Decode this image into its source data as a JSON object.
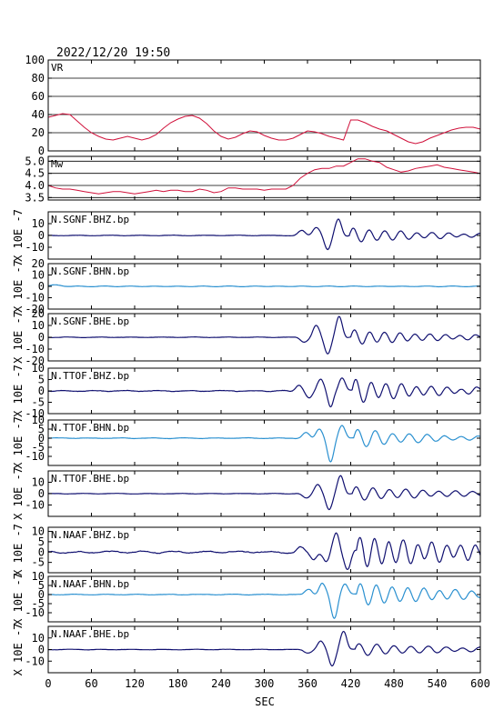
{
  "chart_data": {
    "type": "line",
    "title": "2022/12/20 19:50",
    "xlabel": "SEC",
    "xlim": [
      0,
      600
    ],
    "xticks": [
      "0",
      "60",
      "120",
      "180",
      "240",
      "300",
      "360",
      "420",
      "480",
      "540",
      "600"
    ],
    "colors": {
      "vr": "#d0103a",
      "mw": "#d0103a",
      "dark": "#101070",
      "light": "#2a90d0",
      "axes": "#000000"
    },
    "panels": [
      {
        "id": "vr",
        "label": "VR",
        "kind": "line",
        "color_key": "vr",
        "ylim": [
          0,
          100
        ],
        "yticks": [
          "0",
          "20",
          "40",
          "60",
          "80",
          "100"
        ],
        "grid": true,
        "ylabel": "",
        "x": [
          0,
          10,
          20,
          30,
          40,
          50,
          60,
          70,
          80,
          90,
          100,
          110,
          120,
          130,
          140,
          150,
          160,
          170,
          180,
          190,
          200,
          210,
          220,
          230,
          240,
          250,
          260,
          270,
          280,
          290,
          300,
          310,
          320,
          330,
          340,
          350,
          360,
          370,
          380,
          390,
          400,
          410,
          420,
          430,
          440,
          450,
          460,
          470,
          480,
          490,
          500,
          510,
          520,
          530,
          540,
          550,
          560,
          570,
          580,
          590,
          600
        ],
        "y": [
          37,
          39,
          41,
          40,
          33,
          26,
          20,
          16,
          13,
          12,
          14,
          16,
          14,
          12,
          14,
          18,
          25,
          31,
          35,
          38,
          39,
          36,
          30,
          22,
          16,
          13,
          15,
          19,
          22,
          21,
          17,
          14,
          12,
          12,
          14,
          18,
          22,
          21,
          19,
          16,
          14,
          12,
          34,
          34,
          31,
          27,
          24,
          22,
          18,
          14,
          10,
          8,
          10,
          14,
          17,
          20,
          23,
          25,
          26,
          26,
          24
        ]
      },
      {
        "id": "mw",
        "label": "Mw",
        "kind": "line",
        "color_key": "mw",
        "ylim": [
          3.4,
          5.2
        ],
        "yticks": [
          "3.5",
          "4.0",
          "4.5",
          "5.0"
        ],
        "grid": true,
        "ylabel": "",
        "x": [
          0,
          10,
          20,
          30,
          40,
          50,
          60,
          70,
          80,
          90,
          100,
          110,
          120,
          130,
          140,
          150,
          160,
          170,
          180,
          190,
          200,
          210,
          220,
          230,
          240,
          250,
          260,
          270,
          280,
          290,
          300,
          310,
          320,
          330,
          340,
          350,
          360,
          370,
          380,
          390,
          400,
          410,
          420,
          430,
          440,
          450,
          460,
          470,
          480,
          490,
          500,
          510,
          520,
          530,
          540,
          550,
          560,
          570,
          580,
          590,
          600
        ],
        "y": [
          4.0,
          3.9,
          3.85,
          3.85,
          3.8,
          3.75,
          3.7,
          3.65,
          3.7,
          3.75,
          3.75,
          3.7,
          3.65,
          3.7,
          3.75,
          3.8,
          3.75,
          3.8,
          3.8,
          3.75,
          3.75,
          3.85,
          3.8,
          3.7,
          3.75,
          3.9,
          3.9,
          3.85,
          3.85,
          3.85,
          3.8,
          3.85,
          3.85,
          3.85,
          4.0,
          4.3,
          4.5,
          4.65,
          4.7,
          4.7,
          4.8,
          4.8,
          4.95,
          5.1,
          5.1,
          5.0,
          4.95,
          4.75,
          4.65,
          4.55,
          4.6,
          4.7,
          4.75,
          4.8,
          4.85,
          4.75,
          4.7,
          4.65,
          4.6,
          4.55,
          4.5
        ]
      },
      {
        "id": "sgnf-bhz",
        "label": "N.SGNF.BHZ.bp",
        "kind": "wave",
        "color_key": "dark",
        "ylim": [
          -20,
          20
        ],
        "yticks": [
          "-10",
          "0",
          "10"
        ],
        "ylabel": "X 10E -7",
        "noise": 0.3,
        "onset": 320,
        "ramp": 90,
        "pulses": [
          {
            "t": 352,
            "a": 4,
            "w": 9
          },
          {
            "t": 372,
            "a": 7,
            "w": 9
          },
          {
            "t": 388,
            "a": -12,
            "w": 8
          },
          {
            "t": 403,
            "a": 14,
            "w": 8
          }
        ],
        "tail": {
          "start": 418,
          "a0": 6,
          "decay": 120,
          "period": 22
        }
      },
      {
        "id": "sgnf-bhn",
        "label": "N.SGNF.BHN.bp",
        "kind": "wave",
        "color_key": "light",
        "ylim": [
          -20,
          20
        ],
        "yticks": [
          "-20",
          "-10",
          "0",
          "10",
          "20"
        ],
        "ylabel": "X 10E -7",
        "noise": 0.15,
        "onset": 0,
        "ramp": 1,
        "pulses": [
          {
            "t": 10,
            "a": 1.2,
            "w": 15
          }
        ],
        "tail": {
          "start": 600,
          "a0": 0,
          "decay": 1,
          "period": 20
        }
      },
      {
        "id": "sgnf-bhe",
        "label": "N.SGNF.BHE.bp",
        "kind": "wave",
        "color_key": "dark",
        "ylim": [
          -20,
          20
        ],
        "yticks": [
          "-20",
          "-10",
          "0",
          "10",
          "20"
        ],
        "ylabel": "X 10E -7",
        "noise": 0.3,
        "onset": 325,
        "ramp": 90,
        "pulses": [
          {
            "t": 355,
            "a": -4,
            "w": 9
          },
          {
            "t": 372,
            "a": 10,
            "w": 8
          },
          {
            "t": 388,
            "a": -14,
            "w": 8
          },
          {
            "t": 404,
            "a": 18,
            "w": 8
          }
        ],
        "tail": {
          "start": 420,
          "a0": 6,
          "decay": 130,
          "period": 21
        }
      },
      {
        "id": "ttof-bhz",
        "label": "N.TTOF.BHZ.bp",
        "kind": "wave",
        "color_key": "dark",
        "ylim": [
          -10,
          10
        ],
        "yticks": [
          "-10",
          "-5",
          "0",
          "5",
          "10"
        ],
        "ylabel": "X 10E -7",
        "noise": 0.3,
        "onset": 325,
        "ramp": 90,
        "pulses": [
          {
            "t": 348,
            "a": 2.5,
            "w": 8
          },
          {
            "t": 362,
            "a": -3,
            "w": 8
          },
          {
            "t": 378,
            "a": 5,
            "w": 8
          },
          {
            "t": 392,
            "a": -7,
            "w": 7
          },
          {
            "t": 408,
            "a": 6,
            "w": 8
          }
        ],
        "tail": {
          "start": 422,
          "a0": 5,
          "decay": 110,
          "period": 21
        }
      },
      {
        "id": "ttof-bhn",
        "label": "N.TTOF.BHN.bp",
        "kind": "wave",
        "color_key": "light",
        "ylim": [
          -15,
          10
        ],
        "yticks": [
          "-10",
          "-5",
          "0",
          "5",
          "10"
        ],
        "ylabel": "X 10E -7",
        "noise": 0.25,
        "onset": 330,
        "ramp": 80,
        "pulses": [
          {
            "t": 358,
            "a": 3,
            "w": 9
          },
          {
            "t": 376,
            "a": 5,
            "w": 8
          },
          {
            "t": 392,
            "a": -13,
            "w": 8
          },
          {
            "t": 408,
            "a": 7,
            "w": 8
          }
        ],
        "tail": {
          "start": 424,
          "a0": 5,
          "decay": 100,
          "period": 24
        }
      },
      {
        "id": "ttof-bhe",
        "label": "N.TTOF.BHE.bp",
        "kind": "wave",
        "color_key": "dark",
        "ylim": [
          -20,
          20
        ],
        "yticks": [
          "-10",
          "0",
          "10"
        ],
        "ylabel": "X 10E -7",
        "noise": 0.3,
        "onset": 330,
        "ramp": 80,
        "pulses": [
          {
            "t": 358,
            "a": -4,
            "w": 9
          },
          {
            "t": 374,
            "a": 8,
            "w": 8
          },
          {
            "t": 390,
            "a": -14,
            "w": 8
          },
          {
            "t": 406,
            "a": 16,
            "w": 8
          }
        ],
        "tail": {
          "start": 422,
          "a0": 6,
          "decay": 140,
          "period": 23
        }
      },
      {
        "id": "naaf-bhz",
        "label": "N.NAAF.BHZ.bp",
        "kind": "wave",
        "color_key": "dark",
        "ylim": [
          -10,
          12
        ],
        "yticks": [
          "-5",
          "0",
          "5",
          "10"
        ],
        "ylabel": "X 10E -7",
        "noise": 0.6,
        "onset": 330,
        "ramp": 80,
        "pulses": [
          {
            "t": 350,
            "a": 2,
            "w": 8
          },
          {
            "t": 368,
            "a": -3,
            "w": 8
          },
          {
            "t": 386,
            "a": -5,
            "w": 8
          },
          {
            "t": 400,
            "a": 9,
            "w": 8
          },
          {
            "t": 416,
            "a": -8,
            "w": 8
          }
        ],
        "tail": {
          "start": 428,
          "a0": 7,
          "decay": 200,
          "period": 20
        }
      },
      {
        "id": "naaf-bhn",
        "label": "N.NAAF.BHN.bp",
        "kind": "wave",
        "color_key": "light",
        "ylim": [
          -15,
          10
        ],
        "yticks": [
          "-10",
          "-5",
          "0",
          "5",
          "10"
        ],
        "ylabel": "X 10E -7",
        "noise": 0.25,
        "onset": 330,
        "ramp": 80,
        "pulses": [
          {
            "t": 362,
            "a": 3,
            "w": 9
          },
          {
            "t": 380,
            "a": 6,
            "w": 8
          },
          {
            "t": 397,
            "a": -13,
            "w": 8
          },
          {
            "t": 412,
            "a": 6,
            "w": 8
          }
        ],
        "tail": {
          "start": 428,
          "a0": 6,
          "decay": 150,
          "period": 22
        }
      },
      {
        "id": "naaf-bhe",
        "label": "N.NAAF.BHE.bp",
        "kind": "wave",
        "color_key": "dark",
        "ylim": [
          -20,
          20
        ],
        "yticks": [
          "-10",
          "0",
          "10"
        ],
        "ylabel": "X 10E -7",
        "noise": 0.3,
        "onset": 330,
        "ramp": 80,
        "pulses": [
          {
            "t": 360,
            "a": -3,
            "w": 9
          },
          {
            "t": 378,
            "a": 7,
            "w": 8
          },
          {
            "t": 394,
            "a": -14,
            "w": 8
          },
          {
            "t": 410,
            "a": 16,
            "w": 8
          }
        ],
        "tail": {
          "start": 426,
          "a0": 5,
          "decay": 150,
          "period": 24
        }
      }
    ]
  }
}
